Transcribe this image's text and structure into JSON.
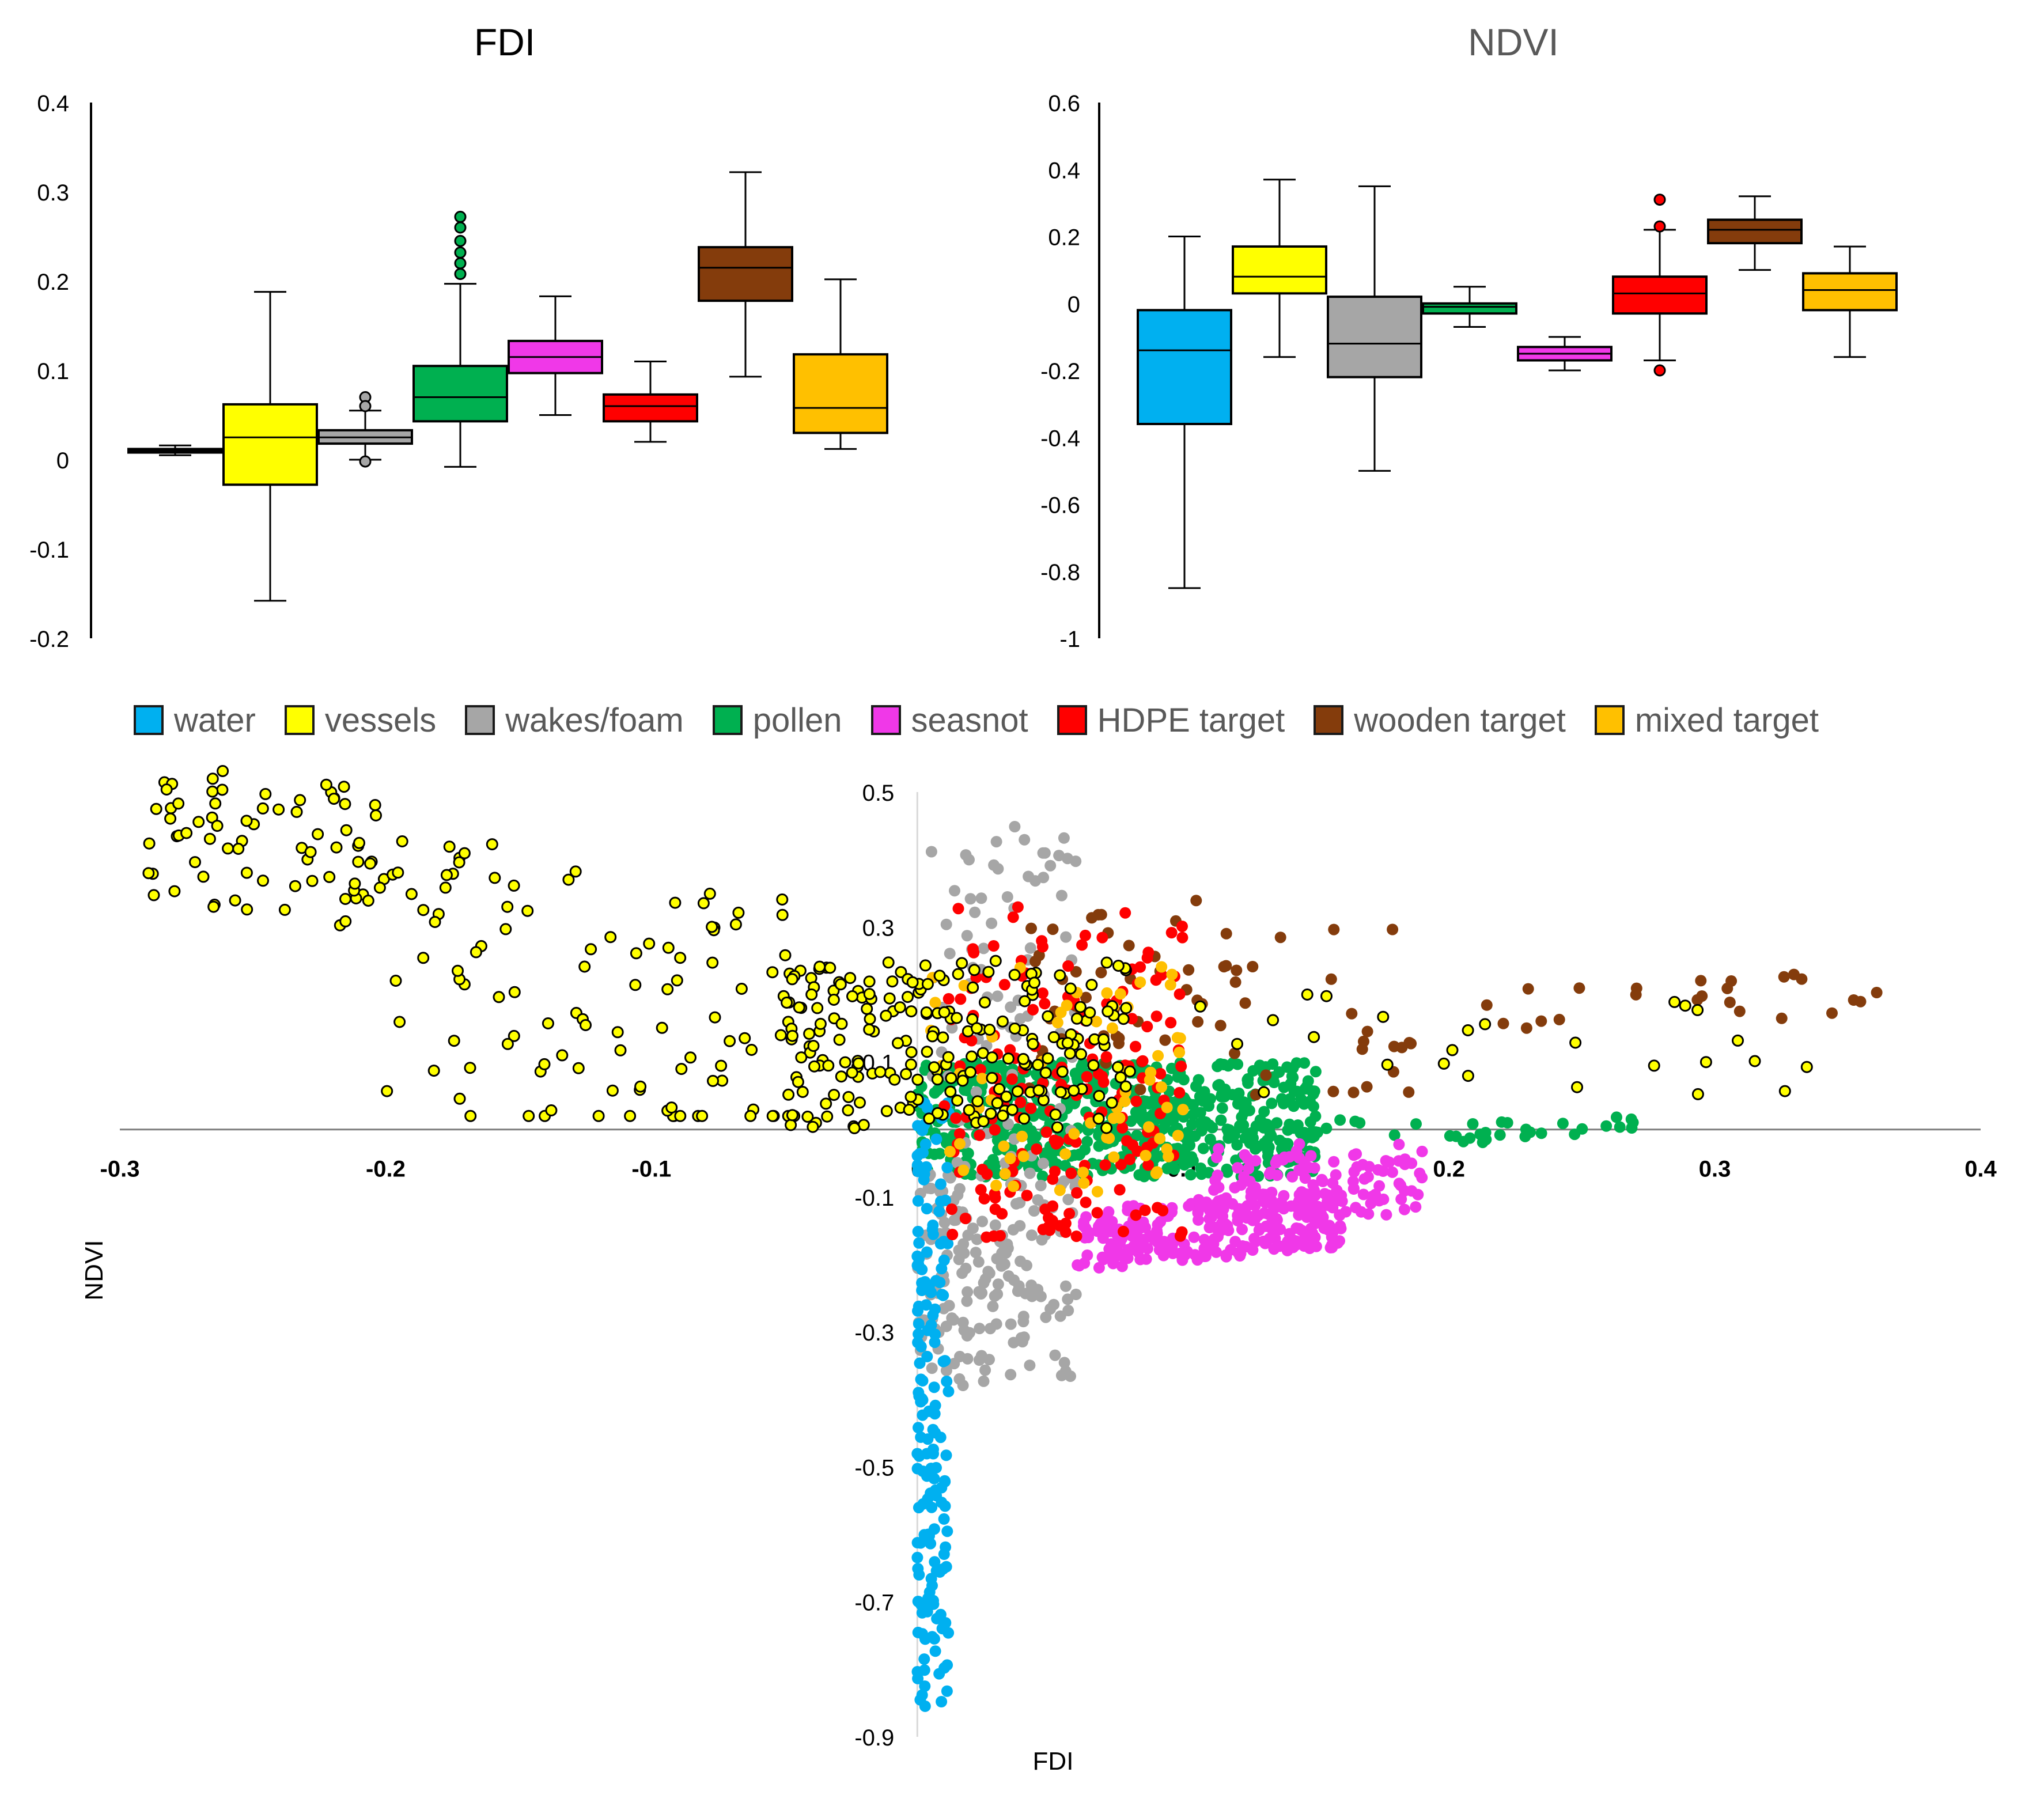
{
  "chart_data": [
    {
      "type": "box",
      "title": "FDI",
      "ylim": [
        -0.2,
        0.4
      ],
      "yticks": [
        "0.4",
        "0.3",
        "0.2",
        "0.1",
        "0",
        "-0.1",
        "-0.2"
      ],
      "boxes": [
        {
          "category": "water",
          "min": 0.005,
          "q1": 0.008,
          "median": 0.01,
          "q3": 0.012,
          "max": 0.016,
          "outliers": []
        },
        {
          "category": "vessels",
          "min": -0.158,
          "q1": -0.028,
          "median": 0.025,
          "q3": 0.062,
          "max": 0.188,
          "outliers": []
        },
        {
          "category": "wakes/foam",
          "min": 0.0,
          "q1": 0.018,
          "median": 0.025,
          "q3": 0.033,
          "max": 0.055,
          "outliers": [
            0.07,
            0.06,
            -0.002
          ]
        },
        {
          "category": "pollen",
          "min": -0.008,
          "q1": 0.043,
          "median": 0.07,
          "q3": 0.105,
          "max": 0.197,
          "outliers": [
            0.272,
            0.26,
            0.245,
            0.232,
            0.22,
            0.208
          ]
        },
        {
          "category": "seasnot",
          "min": 0.05,
          "q1": 0.097,
          "median": 0.115,
          "q3": 0.133,
          "max": 0.183,
          "outliers": []
        },
        {
          "category": "HDPE target",
          "min": 0.02,
          "q1": 0.043,
          "median": 0.06,
          "q3": 0.073,
          "max": 0.11,
          "outliers": []
        },
        {
          "category": "wooden target",
          "min": 0.093,
          "q1": 0.178,
          "median": 0.215,
          "q3": 0.238,
          "max": 0.322,
          "outliers": []
        },
        {
          "category": "mixed target",
          "min": 0.012,
          "q1": 0.03,
          "median": 0.058,
          "q3": 0.118,
          "max": 0.202,
          "outliers": []
        }
      ]
    },
    {
      "type": "box",
      "title": "NDVI",
      "ylim": [
        -1,
        0.6
      ],
      "yticks": [
        "0.6",
        "0.4",
        "0.2",
        "0",
        "-0.2",
        "-0.4",
        "-0.6",
        "-0.8",
        "-1"
      ],
      "boxes": [
        {
          "category": "water",
          "min": -0.85,
          "q1": -0.36,
          "median": -0.14,
          "q3": -0.02,
          "max": 0.2,
          "outliers": []
        },
        {
          "category": "vessels",
          "min": -0.16,
          "q1": 0.03,
          "median": 0.08,
          "q3": 0.17,
          "max": 0.37,
          "outliers": []
        },
        {
          "category": "wakes/foam",
          "min": -0.5,
          "q1": -0.22,
          "median": -0.12,
          "q3": 0.02,
          "max": 0.35,
          "outliers": []
        },
        {
          "category": "pollen",
          "min": -0.07,
          "q1": -0.03,
          "median": -0.01,
          "q3": 0.0,
          "max": 0.05,
          "outliers": []
        },
        {
          "category": "seasnot",
          "min": -0.2,
          "q1": -0.17,
          "median": -0.15,
          "q3": -0.13,
          "max": -0.1,
          "outliers": []
        },
        {
          "category": "HDPE target",
          "min": -0.17,
          "q1": -0.03,
          "median": 0.03,
          "q3": 0.08,
          "max": 0.22,
          "outliers": [
            0.31,
            0.23,
            -0.2
          ]
        },
        {
          "category": "wooden target",
          "min": 0.1,
          "q1": 0.18,
          "median": 0.22,
          "q3": 0.25,
          "max": 0.32,
          "outliers": []
        },
        {
          "category": "mixed target",
          "min": -0.16,
          "q1": -0.02,
          "median": 0.04,
          "q3": 0.09,
          "max": 0.17,
          "outliers": []
        }
      ]
    },
    {
      "type": "scatter",
      "xlabel": "FDI",
      "ylabel": "NDVI",
      "xlim": [
        -0.3,
        0.4
      ],
      "ylim": [
        -0.9,
        0.5
      ],
      "xticks": [
        "-0.3",
        "-0.2",
        "-0.1",
        "0",
        "0.1",
        "0.2",
        "0.3",
        "0.4"
      ],
      "yticks": [
        "0.5",
        "0.3",
        "0.1",
        "-0.1",
        "-0.3",
        "-0.5",
        "-0.7",
        "-0.9"
      ],
      "series": [
        {
          "name": "water",
          "clusters": [
            {
              "x": [
                0.0,
                0.012
              ],
              "y": [
                -0.86,
                0.04
              ],
              "n": 170
            }
          ]
        },
        {
          "name": "vessels",
          "clusters": [
            {
              "x": [
                -0.29,
                -0.2
              ],
              "y": [
                0.2,
                0.5
              ],
              "n": 75
            },
            {
              "x": [
                -0.2,
                -0.04
              ],
              "y": [
                0.02,
                0.45
              ],
              "n": 110
            },
            {
              "x": [
                -0.05,
                0.08
              ],
              "y": [
                0.0,
                0.25
              ],
              "n": 230
            },
            {
              "x": [
                0.1,
                0.34
              ],
              "y": [
                0.05,
                0.2
              ],
              "n": 26
            }
          ]
        },
        {
          "name": "wakes/foam",
          "clusters": [
            {
              "x": [
                0.005,
                0.06
              ],
              "y": [
                -0.3,
                0.45
              ],
              "n": 120
            },
            {
              "x": [
                0.0,
                0.06
              ],
              "y": [
                -0.38,
                -0.05
              ],
              "n": 130
            }
          ]
        },
        {
          "name": "pollen",
          "clusters": [
            {
              "x": [
                0.0,
                0.15
              ],
              "y": [
                -0.07,
                0.1
              ],
              "n": 600
            },
            {
              "x": [
                0.15,
                0.27
              ],
              "y": [
                -0.02,
                0.02
              ],
              "n": 32
            }
          ]
        },
        {
          "name": "seasnot",
          "clusters": [
            {
              "x": [
                0.06,
                0.16
              ],
              "y": [
                -0.21,
                -0.12
              ],
              "n": 260
            },
            {
              "x": [
                0.11,
                0.19
              ],
              "y": [
                -0.13,
                -0.02
              ],
              "n": 110
            }
          ]
        },
        {
          "name": "HDPE target",
          "clusters": [
            {
              "x": [
                0.01,
                0.1
              ],
              "y": [
                -0.16,
                0.33
              ],
              "n": 190
            }
          ]
        },
        {
          "name": "wooden target",
          "clusters": [
            {
              "x": [
                0.04,
                0.19
              ],
              "y": [
                0.05,
                0.34
              ],
              "n": 70
            },
            {
              "x": [
                0.19,
                0.38
              ],
              "y": [
                0.15,
                0.23
              ],
              "n": 24
            }
          ]
        },
        {
          "name": "mixed target",
          "clusters": [
            {
              "x": [
                0.005,
                0.1
              ],
              "y": [
                -0.1,
                0.25
              ],
              "n": 70
            }
          ]
        }
      ]
    }
  ],
  "legend": [
    {
      "label": "water",
      "color": "#00b0f0"
    },
    {
      "label": "vessels",
      "color": "#ffff00"
    },
    {
      "label": "wakes/foam",
      "color": "#a6a6a6"
    },
    {
      "label": "pollen",
      "color": "#00b050"
    },
    {
      "label": "seasnot",
      "color": "#f038e8"
    },
    {
      "label": "HDPE target",
      "color": "#ff0000"
    },
    {
      "label": "wooden target",
      "color": "#843c0c"
    },
    {
      "label": "mixed target",
      "color": "#ffc000"
    }
  ]
}
